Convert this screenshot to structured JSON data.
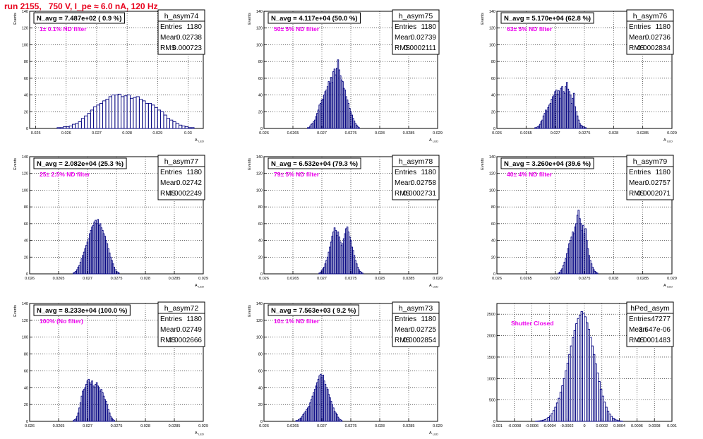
{
  "title": "run 2155,   750 V, I_pe ≈ 6.0 nA, 120 Hz",
  "chart_data": [
    {
      "type": "bar",
      "name": "h_asym74",
      "ylabel": "Events",
      "xlabel": "A_LED",
      "xlim": [
        0.0248,
        0.0305
      ],
      "ylim": [
        0,
        140
      ],
      "xticks": [
        0.025,
        0.026,
        0.027,
        0.028,
        0.029,
        0.03
      ],
      "xticklabels": [
        "0.025",
        "0.026",
        "0.027",
        "0.028",
        "0.029",
        "0.03"
      ],
      "yticks": [
        0,
        20,
        40,
        60,
        80,
        100,
        120,
        140
      ],
      "navg": "N_avg = 7.487e+02 ( 0.9 %)",
      "filter": "1± 0.1% ND filter",
      "stats": {
        "Entries": "1180",
        "Mean": "0.02738",
        "RMS": "0.000723"
      },
      "bins": {
        "start": 0.0257,
        "width": 0.0001,
        "values": [
          1,
          1,
          2,
          2,
          3,
          5,
          6,
          8,
          12,
          15,
          18,
          22,
          26,
          28,
          30,
          33,
          35,
          38,
          40,
          40,
          41,
          38,
          39,
          40,
          36,
          37,
          38,
          35,
          33,
          30,
          30,
          28,
          25,
          22,
          20,
          16,
          12,
          10,
          8,
          6,
          4,
          3,
          2,
          1,
          1
        ]
      }
    },
    {
      "type": "bar",
      "name": "h_asym75",
      "ylabel": "Events",
      "xlabel": "A_LED",
      "xlim": [
        0.026,
        0.029
      ],
      "ylim": [
        0,
        140
      ],
      "xticks": [
        0.026,
        0.0265,
        0.027,
        0.0275,
        0.028,
        0.0285,
        0.029
      ],
      "xticklabels": [
        "0.026",
        "0.0265",
        "0.027",
        "0.0275",
        "0.028",
        "0.0285",
        "0.029"
      ],
      "yticks": [
        0,
        20,
        40,
        60,
        80,
        100,
        120,
        140
      ],
      "navg": "N_avg = 4.117e+04 (50.0 %)",
      "filter": "50± 5% ND filter",
      "stats": {
        "Entries": "1180",
        "Mean": "0.02739",
        "RMS": "0.0002111"
      },
      "bins": {
        "start": 0.02675,
        "width": 2e-05,
        "values": [
          1,
          1,
          3,
          5,
          6,
          8,
          10,
          14,
          18,
          22,
          28,
          30,
          34,
          35,
          40,
          44,
          46,
          50,
          56,
          54,
          61,
          55,
          68,
          71,
          64,
          72,
          82,
          70,
          63,
          58,
          56,
          48,
          46,
          38,
          34,
          30,
          24,
          20,
          16,
          12,
          9,
          6,
          4,
          2,
          1
        ]
      }
    },
    {
      "type": "bar",
      "name": "h_asym76",
      "ylabel": "Events",
      "xlabel": "A_LED",
      "xlim": [
        0.026,
        0.029
      ],
      "ylim": [
        0,
        140
      ],
      "xticks": [
        0.026,
        0.0265,
        0.027,
        0.0275,
        0.028,
        0.0285,
        0.029
      ],
      "xticklabels": [
        "0.026",
        "0.0265",
        "0.027",
        "0.0275",
        "0.028",
        "0.0285",
        "0.029"
      ],
      "yticks": [
        0,
        20,
        40,
        60,
        80,
        100,
        120,
        140
      ],
      "navg": "N_avg = 5.170e+04 (62.8 %)",
      "filter": "63± 5% ND filter",
      "stats": {
        "Entries": "1180",
        "Mean": "0.02736",
        "RMS": "0.0002834"
      },
      "bins": {
        "start": 0.02665,
        "width": 2e-05,
        "values": [
          1,
          1,
          2,
          3,
          5,
          8,
          10,
          15,
          18,
          22,
          20,
          25,
          28,
          30,
          35,
          38,
          40,
          44,
          46,
          41,
          45,
          36,
          48,
          50,
          44,
          42,
          50,
          55,
          47,
          44,
          40,
          30,
          36,
          42,
          26,
          20,
          15,
          10,
          6,
          4,
          3,
          2,
          1,
          1
        ]
      }
    },
    {
      "type": "bar",
      "name": "h_asym77",
      "ylabel": "Events",
      "xlabel": "A_LED",
      "xlim": [
        0.026,
        0.029
      ],
      "ylim": [
        0,
        140
      ],
      "xticks": [
        0.026,
        0.0265,
        0.027,
        0.0275,
        0.028,
        0.0285,
        0.029
      ],
      "xticklabels": [
        "0.026",
        "0.0265",
        "0.027",
        "0.0275",
        "0.028",
        "0.0285",
        "0.029"
      ],
      "yticks": [
        0,
        20,
        40,
        60,
        80,
        100,
        120,
        140
      ],
      "navg": "N_avg = 2.082e+04 (25.3 %)",
      "filter": "25± 2.5% ND filter",
      "stats": {
        "Entries": "1180",
        "Mean": "0.02742",
        "RMS": "0.0002249"
      },
      "bins": {
        "start": 0.02675,
        "width": 2e-05,
        "values": [
          1,
          2,
          3,
          5,
          8,
          10,
          14,
          18,
          22,
          26,
          30,
          34,
          38,
          42,
          48,
          52,
          56,
          58,
          62,
          64,
          60,
          65,
          58,
          60,
          55,
          52,
          48,
          45,
          40,
          36,
          30,
          25,
          20,
          16,
          12,
          8,
          5,
          3,
          2,
          1
        ]
      }
    },
    {
      "type": "bar",
      "name": "h_asym78",
      "ylabel": "Events",
      "xlabel": "A_LED",
      "xlim": [
        0.026,
        0.029
      ],
      "ylim": [
        0,
        140
      ],
      "xticks": [
        0.026,
        0.0265,
        0.027,
        0.0275,
        0.028,
        0.0285,
        0.029
      ],
      "xticklabels": [
        "0.026",
        "0.0265",
        "0.027",
        "0.0275",
        "0.028",
        "0.0285",
        "0.029"
      ],
      "yticks": [
        0,
        20,
        40,
        60,
        80,
        100,
        120,
        140
      ],
      "navg": "N_avg = 6.532e+04 (79.3 %)",
      "filter": "79± 5% ND filter",
      "stats": {
        "Entries": "1180",
        "Mean": "0.02758",
        "RMS": "0.0002731"
      },
      "bins": {
        "start": 0.02695,
        "width": 2e-05,
        "values": [
          1,
          2,
          4,
          6,
          8,
          12,
          16,
          20,
          26,
          32,
          38,
          45,
          50,
          55,
          52,
          46,
          50,
          44,
          38,
          34,
          36,
          42,
          48,
          54,
          56,
          50,
          44,
          40,
          32,
          28,
          22,
          16,
          12,
          8,
          5,
          3,
          2,
          1
        ]
      }
    },
    {
      "type": "bar",
      "name": "h_asym79",
      "ylabel": "Events",
      "xlabel": "A_LED",
      "xlim": [
        0.026,
        0.029
      ],
      "ylim": [
        0,
        140
      ],
      "xticks": [
        0.026,
        0.0265,
        0.027,
        0.0275,
        0.028,
        0.0285,
        0.029
      ],
      "xticklabels": [
        "0.026",
        "0.0265",
        "0.027",
        "0.0275",
        "0.028",
        "0.0285",
        "0.029"
      ],
      "yticks": [
        0,
        20,
        40,
        60,
        80,
        100,
        120,
        140
      ],
      "navg": "N_avg = 3.260e+04 (39.6 %)",
      "filter": "40± 4% ND filter",
      "stats": {
        "Entries": "1180",
        "Mean": "0.02757",
        "RMS": "0.0002071"
      },
      "bins": {
        "start": 0.02705,
        "width": 2e-05,
        "values": [
          1,
          2,
          4,
          6,
          10,
          14,
          18,
          24,
          30,
          36,
          40,
          44,
          50,
          48,
          56,
          60,
          70,
          76,
          66,
          60,
          52,
          58,
          48,
          54,
          40,
          30,
          22,
          16,
          12,
          8,
          5,
          3,
          2,
          1
        ]
      }
    },
    {
      "type": "bar",
      "name": "h_asym72",
      "ylabel": "Events",
      "xlabel": "A_LED",
      "xlim": [
        0.026,
        0.029
      ],
      "ylim": [
        0,
        140
      ],
      "xticks": [
        0.026,
        0.0265,
        0.027,
        0.0275,
        0.028,
        0.0285,
        0.029
      ],
      "xticklabels": [
        "0.026",
        "0.0265",
        "0.027",
        "0.0275",
        "0.028",
        "0.0285",
        "0.029"
      ],
      "yticks": [
        0,
        20,
        40,
        60,
        80,
        100,
        120,
        140
      ],
      "navg": "N_avg = 8.233e+04 (100.0 %)",
      "filter": "100% (No filter)",
      "stats": {
        "Entries": "1180",
        "Mean": "0.02749",
        "RMS": "0.0002666"
      },
      "bins": {
        "start": 0.02675,
        "width": 2e-05,
        "values": [
          1,
          2,
          3,
          6,
          10,
          16,
          22,
          30,
          36,
          38,
          40,
          44,
          48,
          50,
          46,
          44,
          48,
          42,
          40,
          44,
          46,
          42,
          40,
          36,
          38,
          34,
          30,
          26,
          24,
          20,
          14,
          10,
          6,
          4,
          2,
          1
        ]
      }
    },
    {
      "type": "bar",
      "name": "h_asym73",
      "ylabel": "Events",
      "xlabel": "A_LED",
      "xlim": [
        0.026,
        0.029
      ],
      "ylim": [
        0,
        140
      ],
      "xticks": [
        0.026,
        0.0265,
        0.027,
        0.0275,
        0.028,
        0.0285,
        0.029
      ],
      "xticklabels": [
        "0.026",
        "0.0265",
        "0.027",
        "0.0275",
        "0.028",
        "0.0285",
        "0.029"
      ],
      "yticks": [
        0,
        20,
        40,
        60,
        80,
        100,
        120,
        140
      ],
      "navg": "N_avg = 7.563e+03 ( 9.2 %)",
      "filter": "10± 1% ND filter",
      "stats": {
        "Entries": "1180",
        "Mean": "0.02725",
        "RMS": "0.0002854"
      },
      "bins": {
        "start": 0.02655,
        "width": 2e-05,
        "values": [
          1,
          1,
          2,
          3,
          4,
          6,
          8,
          10,
          12,
          14,
          16,
          18,
          22,
          26,
          30,
          34,
          38,
          42,
          46,
          50,
          54,
          56,
          52,
          55,
          48,
          44,
          40,
          38,
          32,
          28,
          24,
          20,
          16,
          12,
          10,
          8,
          5,
          3,
          2,
          1
        ]
      }
    },
    {
      "type": "bar",
      "name": "hPed_asym",
      "ylabel": "",
      "xlabel": "",
      "xlim": [
        -0.001,
        0.001
      ],
      "ylim": [
        0,
        2750
      ],
      "xticks": [
        -0.001,
        -0.0008,
        -0.0006,
        -0.0004,
        -0.0002,
        0,
        0.0002,
        0.0004,
        0.0006,
        0.0008,
        0.001
      ],
      "xticklabels": [
        "-0.001",
        "-0.0008",
        "-0.0006",
        "-0.0004",
        "-0.0002",
        "0",
        "0.0002",
        "0.0004",
        "0.0006",
        "0.0008",
        "0.001"
      ],
      "yticks": [
        0,
        500,
        1000,
        1500,
        2000,
        2500
      ],
      "navg": "",
      "filter": "Shutter Closed",
      "stats": {
        "Entries": "47277",
        "Mean": "3.647e-06",
        "RMS": "0.0001483"
      },
      "bins": {
        "start": -0.00056,
        "width": 2e-05,
        "values": [
          5,
          8,
          12,
          18,
          28,
          40,
          60,
          90,
          130,
          180,
          250,
          330,
          430,
          540,
          680,
          830,
          1000,
          1180,
          1360,
          1560,
          1760,
          1950,
          2120,
          2280,
          2400,
          2480,
          2560,
          2520,
          2440,
          2300,
          2150,
          1960,
          1760,
          1560,
          1340,
          1130,
          930,
          750,
          590,
          450,
          330,
          240,
          170,
          115,
          75,
          48,
          30,
          18,
          10,
          6
        ]
      }
    }
  ]
}
